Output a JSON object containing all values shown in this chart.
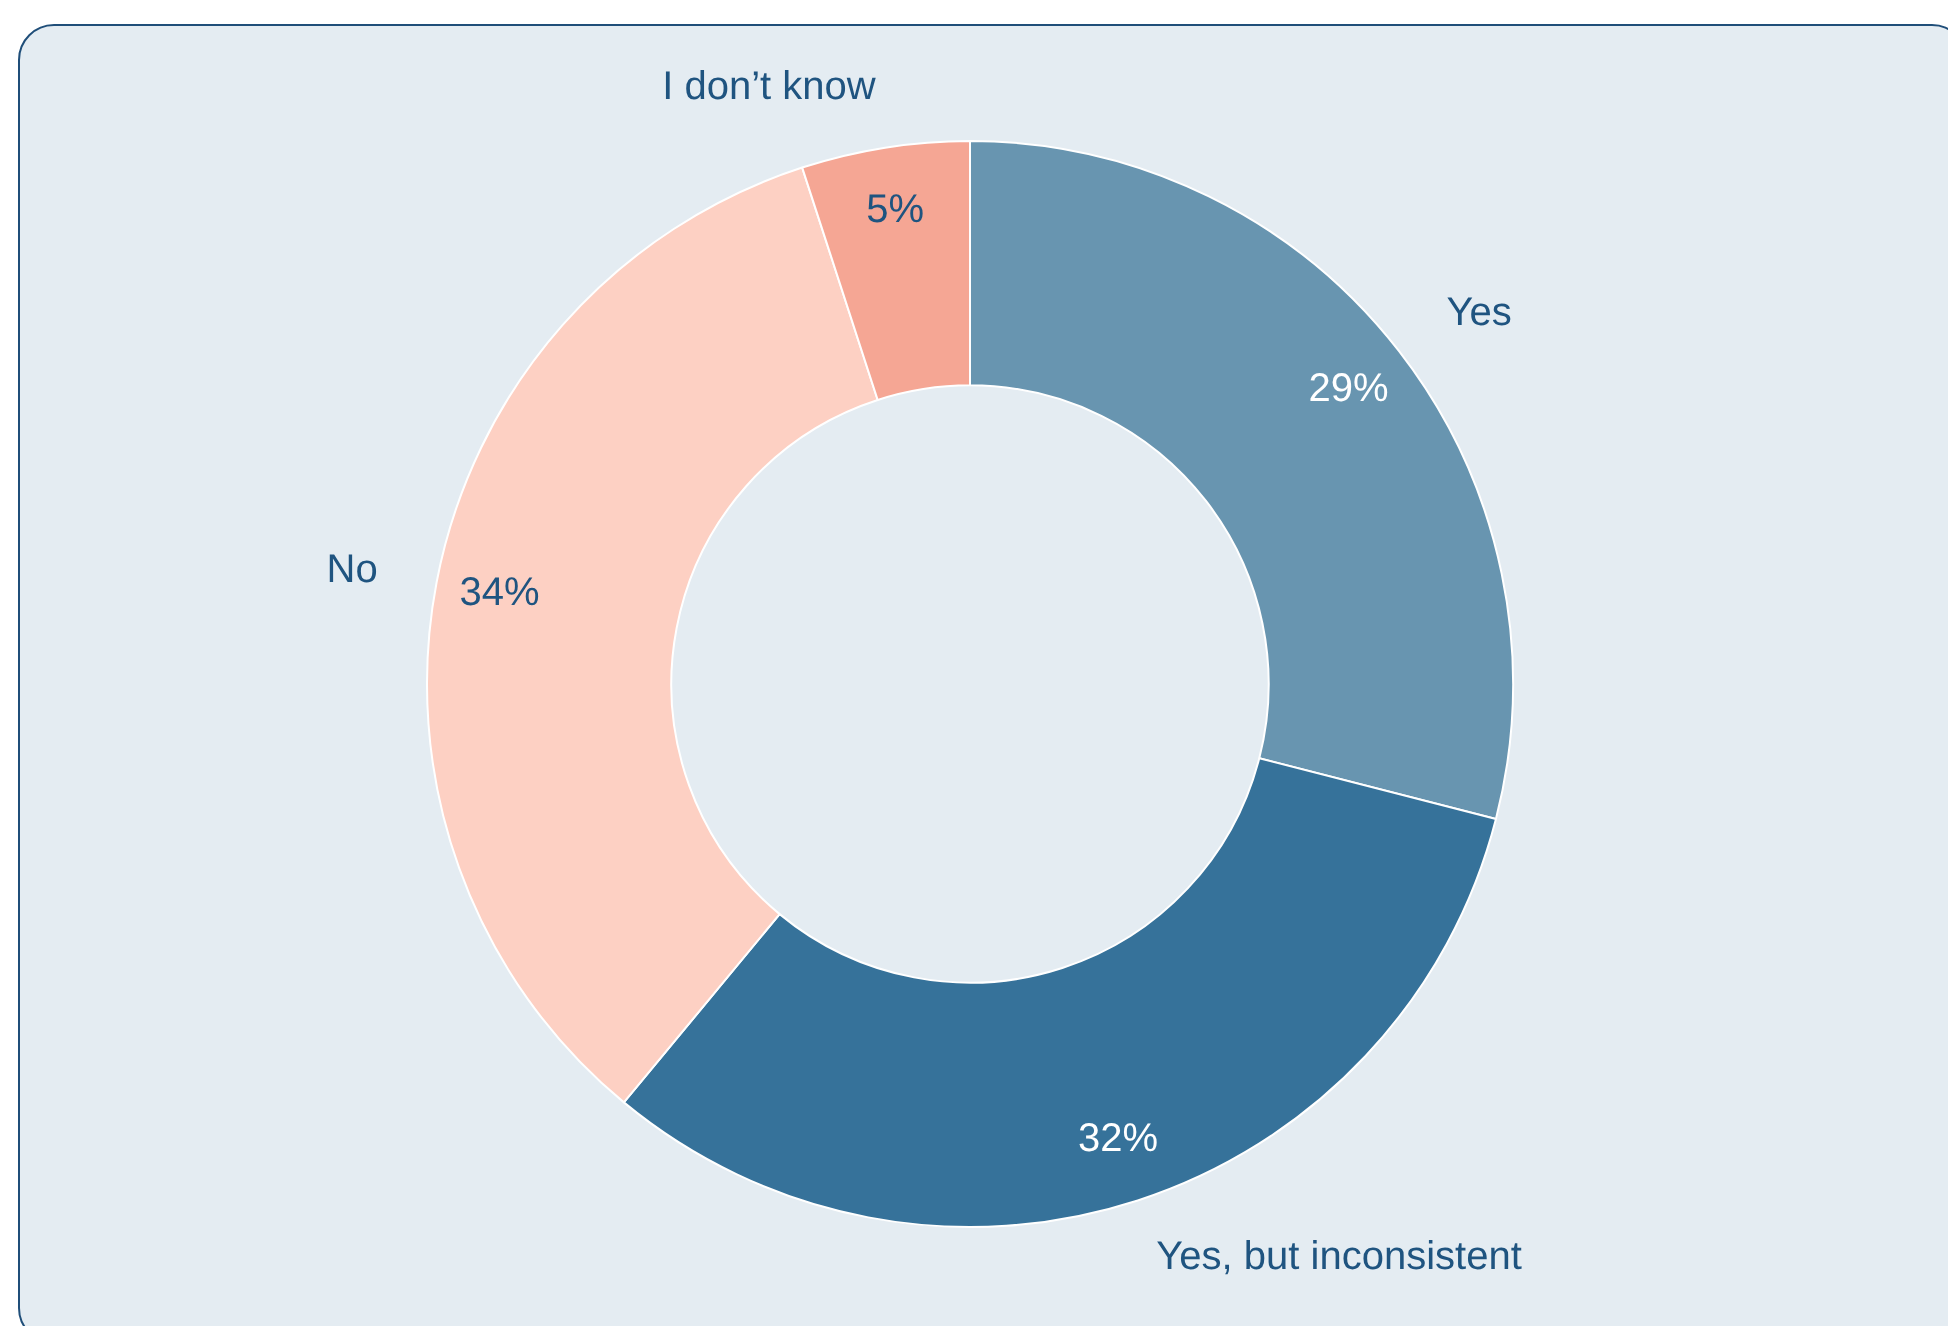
{
  "chart_data": {
    "type": "donut",
    "categories": [
      "Yes",
      "Yes, but inconsistent",
      "No",
      "I don’t know"
    ],
    "values": [
      29,
      32,
      34,
      5
    ],
    "value_labels": [
      "29%",
      "32%",
      "34%",
      "5%"
    ],
    "colors": [
      "#6895b0",
      "#36729a",
      "#fdd0c3",
      "#f5a694"
    ],
    "legend": false
  }
}
